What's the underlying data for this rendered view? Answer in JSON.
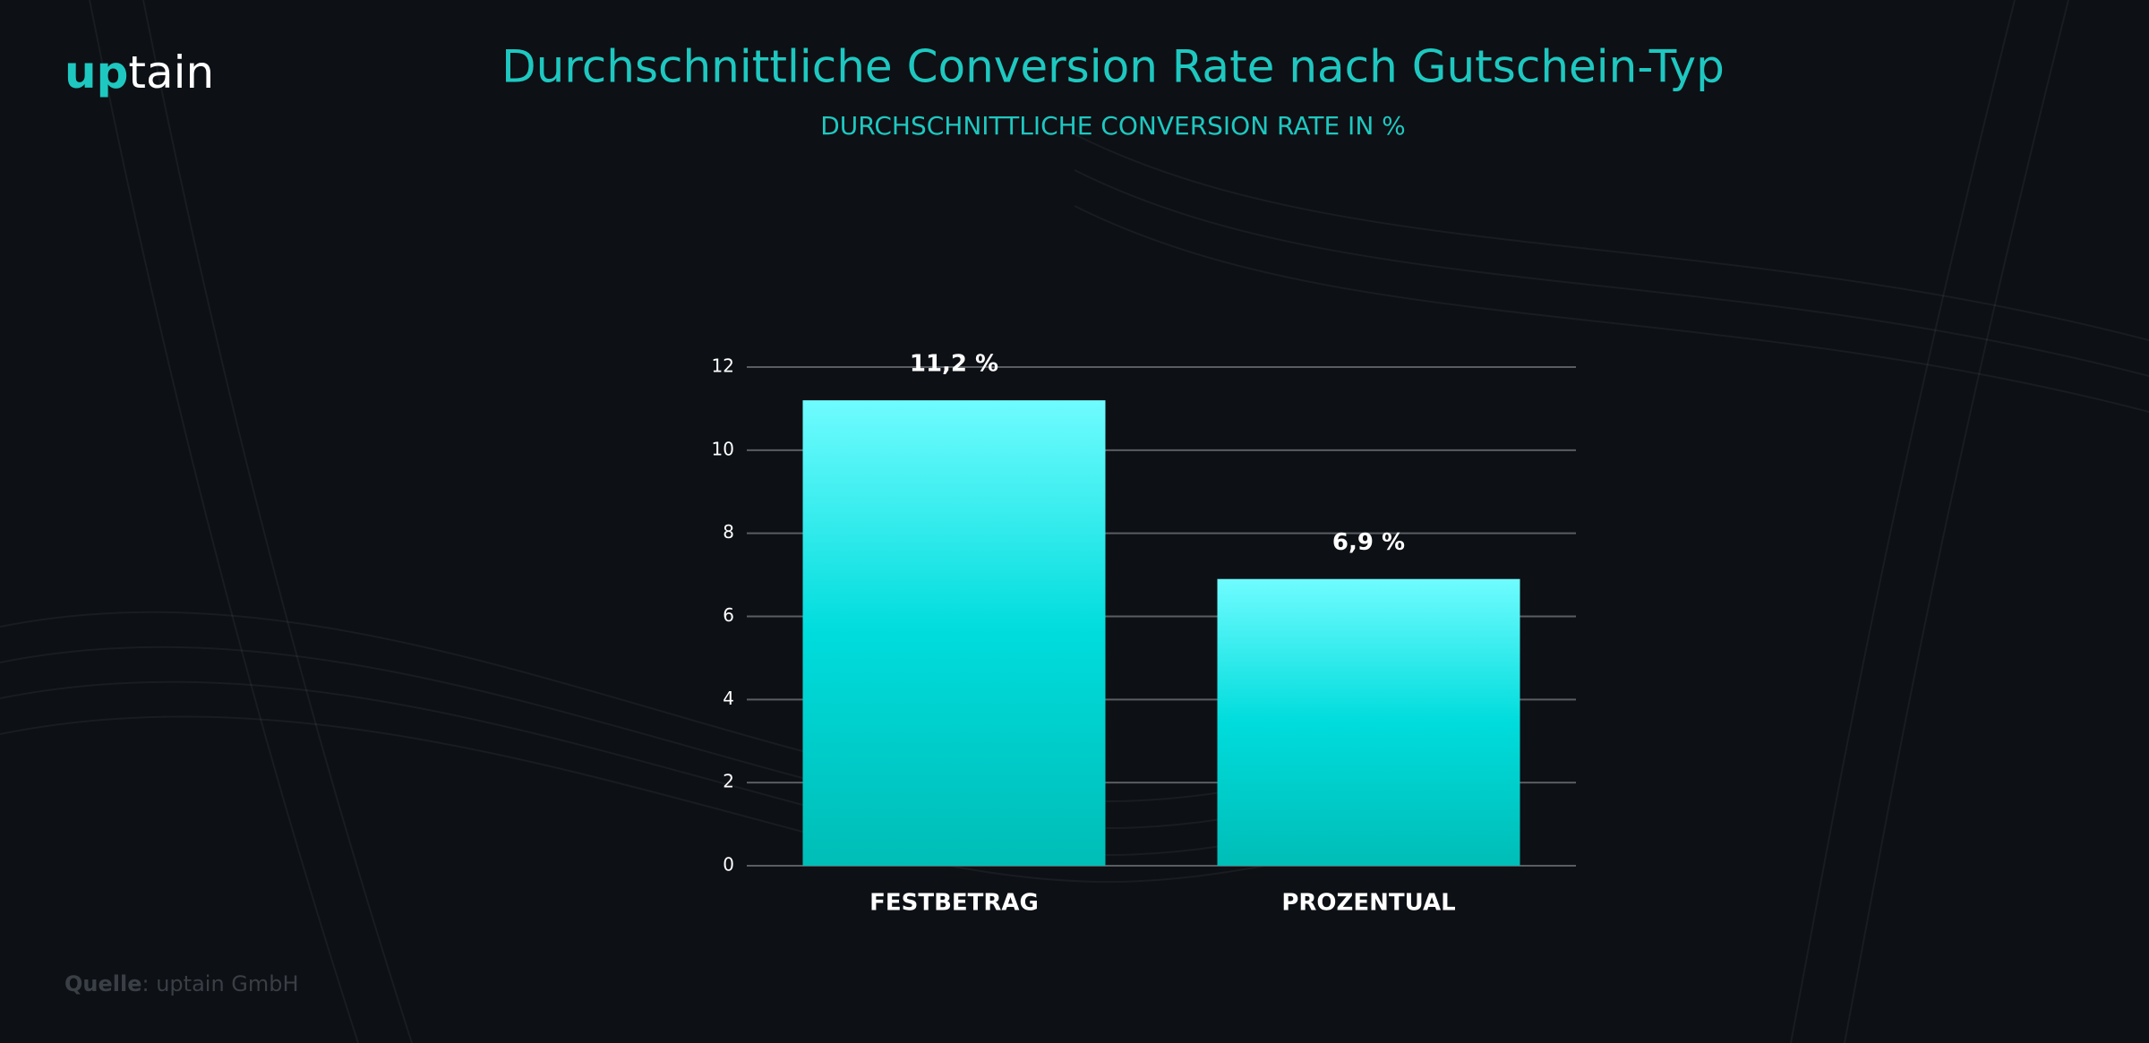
{
  "logo": [
    "up",
    "tain"
  ],
  "source": {
    "label": "Quelle",
    "text": ": uptain GmbH"
  },
  "chart_data": {
    "type": "bar",
    "title": "Durchschnittliche Conversion Rate nach Gutschein-Typ",
    "subtitle": "DURCHSCHNITTLICHE CONVERSION RATE IN %",
    "categories": [
      "FESTBETRAG",
      "PROZENTUAL"
    ],
    "values": [
      11.2,
      6.9
    ],
    "value_labels": [
      "11,2 %",
      "6,9 %"
    ],
    "color": "#00d9d9",
    "ylim": [
      0,
      12
    ],
    "yticks": [
      0,
      2,
      4,
      6,
      8,
      10,
      12
    ],
    "grid": true
  }
}
